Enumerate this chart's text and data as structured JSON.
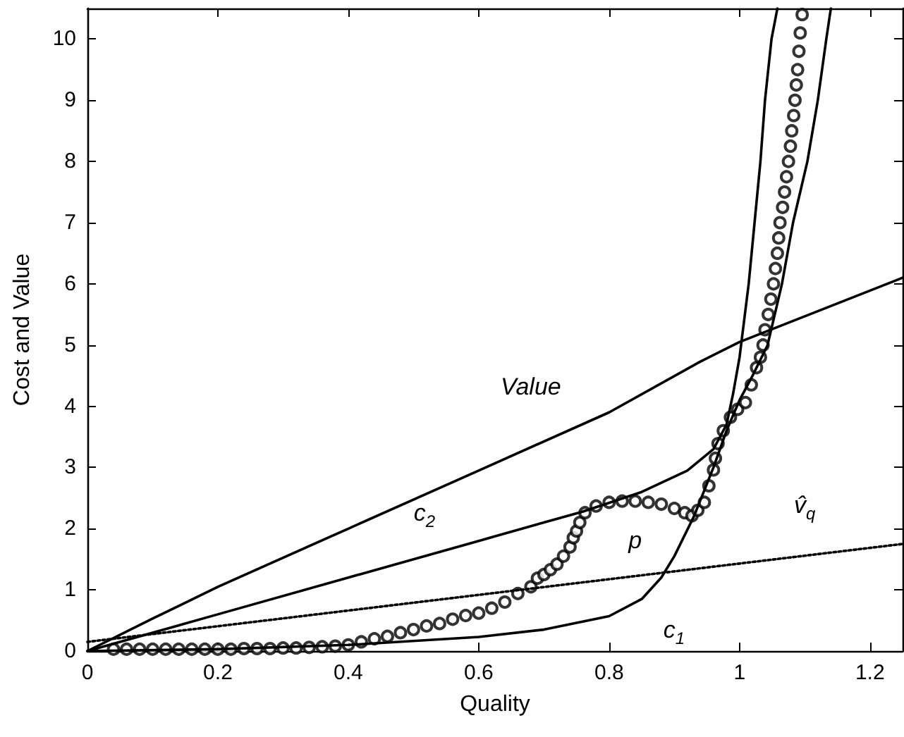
{
  "chart_data": {
    "type": "line",
    "xlabel": "Quality",
    "ylabel": "Cost and Value",
    "xlim": [
      0,
      1.25
    ],
    "ylim": [
      0,
      10.5
    ],
    "xticks": [
      0,
      0.2,
      0.4,
      0.6,
      0.8,
      1,
      1.2
    ],
    "yticks": [
      0,
      1,
      2,
      3,
      4,
      5,
      6,
      7,
      8,
      9,
      10
    ],
    "grid": false,
    "series": [
      {
        "color": "#000000",
        "marker": "none",
        "line_style": "solid",
        "x": [
          0,
          0.1,
          0.2,
          0.4,
          0.6,
          0.8,
          0.94,
          1.0,
          1.25
        ],
        "values": [
          0,
          0.53,
          1.05,
          2.0,
          2.95,
          3.9,
          4.73,
          5.05,
          6.1
        ]
      },
      {
        "color": "#000000",
        "marker": "none",
        "line_style": "solid",
        "x": [
          0,
          0.2,
          0.4,
          0.6,
          0.76,
          0.85,
          0.92,
          0.96,
          0.98,
          0.99,
          1.0,
          1.014,
          1.023,
          1.032,
          1.039,
          1.049,
          1.058
        ],
        "values": [
          0,
          0.6,
          1.2,
          1.8,
          2.28,
          2.6,
          2.95,
          3.3,
          3.7,
          4.2,
          4.8,
          6,
          7,
          8,
          9,
          10,
          10.5
        ]
      },
      {
        "color": "#000000",
        "marker": "none",
        "line_style": "solid",
        "x": [
          0,
          0.2,
          0.4,
          0.6,
          0.7,
          0.8,
          0.85,
          0.88,
          0.9,
          0.93,
          0.96,
          0.98,
          1.0,
          1.02,
          1.043,
          1.065,
          1.082,
          1.104,
          1.12,
          1.133,
          1.14
        ],
        "values": [
          0,
          0.03,
          0.1,
          0.23,
          0.35,
          0.57,
          0.85,
          1.2,
          1.55,
          2.2,
          3.0,
          3.6,
          4.1,
          4.5,
          5,
          6,
          7,
          8,
          9,
          10,
          10.5
        ]
      },
      {
        "color": "#000000",
        "marker": "none",
        "line_style": "dotted",
        "x": [
          0,
          1.25
        ],
        "values": [
          0.15,
          1.75
        ]
      },
      {
        "type": "scatter",
        "color": "#000000",
        "marker": "circle",
        "x": [
          0.04,
          0.06,
          0.08,
          0.1,
          0.12,
          0.14,
          0.16,
          0.18,
          0.2,
          0.22,
          0.24,
          0.26,
          0.28,
          0.3,
          0.32,
          0.34,
          0.36,
          0.38,
          0.4,
          0.42,
          0.44,
          0.46,
          0.48,
          0.5,
          0.52,
          0.54,
          0.56,
          0.58,
          0.6,
          0.62,
          0.64,
          0.66,
          0.68,
          0.69,
          0.7,
          0.71,
          0.72,
          0.73,
          0.74,
          0.745,
          0.75,
          0.755,
          0.763,
          0.78,
          0.8,
          0.82,
          0.84,
          0.86,
          0.88,
          0.9,
          0.916,
          0.927,
          0.936,
          0.946,
          0.953,
          0.96,
          0.963,
          0.967,
          0.975,
          0.986,
          0.997,
          1.009,
          1.018,
          1.026,
          1.032,
          1.036,
          1.039,
          1.044,
          1.048,
          1.052,
          1.055,
          1.058,
          1.06,
          1.062,
          1.066,
          1.069,
          1.072,
          1.075,
          1.078,
          1.08,
          1.083,
          1.085,
          1.087,
          1.089,
          1.091,
          1.093,
          1.096
        ],
        "values": [
          0.03,
          0.03,
          0.03,
          0.03,
          0.03,
          0.03,
          0.03,
          0.03,
          0.03,
          0.03,
          0.04,
          0.04,
          0.04,
          0.05,
          0.05,
          0.06,
          0.07,
          0.08,
          0.1,
          0.15,
          0.2,
          0.24,
          0.3,
          0.35,
          0.41,
          0.45,
          0.52,
          0.58,
          0.62,
          0.7,
          0.8,
          0.94,
          1.05,
          1.19,
          1.25,
          1.33,
          1.42,
          1.55,
          1.7,
          1.85,
          1.96,
          2.1,
          2.26,
          2.37,
          2.43,
          2.45,
          2.45,
          2.43,
          2.4,
          2.33,
          2.26,
          2.21,
          2.3,
          2.43,
          2.7,
          2.96,
          3.15,
          3.39,
          3.6,
          3.82,
          3.95,
          4.06,
          4.35,
          4.63,
          4.8,
          5.0,
          5.25,
          5.5,
          5.75,
          6.0,
          6.25,
          6.5,
          6.75,
          7.0,
          7.25,
          7.5,
          7.75,
          8.0,
          8.25,
          8.5,
          8.75,
          9.0,
          9.25,
          9.5,
          9.8,
          10.1,
          10.4
        ]
      }
    ],
    "annotations": [
      {
        "text": "Value",
        "x": 0.68,
        "y": 3.3
      },
      {
        "text": "c$_{2}$",
        "x": 0.56,
        "y": 1.68
      },
      {
        "text": "p",
        "x": 0.84,
        "y": 2.45
      },
      {
        "text": "c$_{1}$",
        "x": 0.8,
        "y": 0.57
      },
      {
        "text": "v̂$_{q}$",
        "x": 1.1,
        "y": 1.56
      }
    ]
  }
}
